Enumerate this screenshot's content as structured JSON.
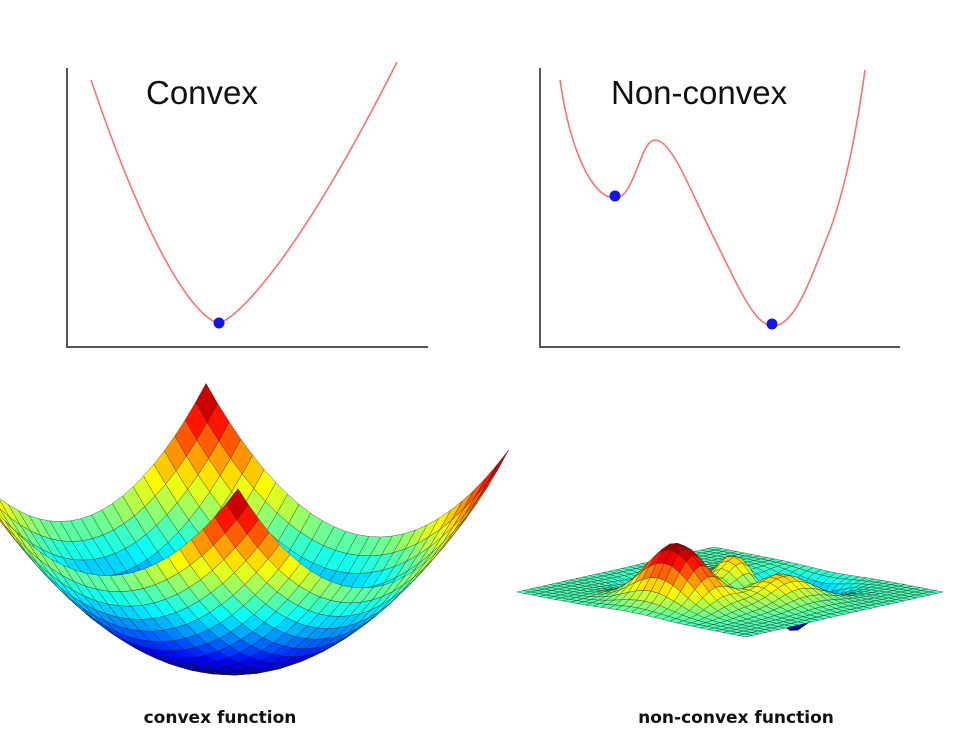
{
  "panels": {
    "convex_2d": {
      "title": "Convex"
    },
    "nonconvex_2d": {
      "title": "Non-convex"
    }
  },
  "captions": {
    "convex": "convex function",
    "nonconvex": "non-convex function"
  },
  "colors": {
    "curve": "#ff7070",
    "point": "#1515e6",
    "axis": "#555555",
    "mesh": "#222222"
  }
}
